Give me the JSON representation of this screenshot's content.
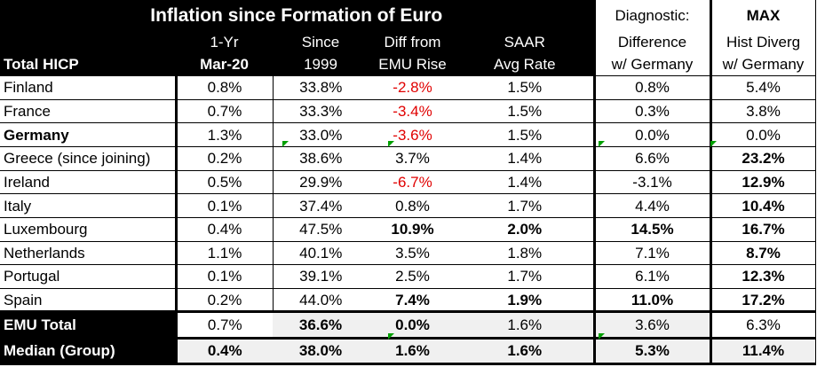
{
  "header": {
    "title": "Inflation since Formation of Euro",
    "row_label": "Total HICP",
    "col1": [
      "1-Yr",
      "Mar-20"
    ],
    "col2": [
      "Since",
      "1999"
    ],
    "col3": [
      "Diff from",
      "EMU Rise"
    ],
    "col4": [
      "SAAR",
      "Avg Rate"
    ],
    "col5": [
      "Diagnostic:",
      "Difference",
      "w/ Germany"
    ],
    "col6": [
      "MAX",
      "Hist Diverg",
      "w/ Germany"
    ]
  },
  "rows": [
    {
      "name": "Finland",
      "yr": "0.8%",
      "since": "33.8%",
      "diff": "-2.8%",
      "saar": "1.5%",
      "diag": "0.8%",
      "max": "5.4%"
    },
    {
      "name": "France",
      "yr": "0.7%",
      "since": "33.3%",
      "diff": "-3.4%",
      "saar": "1.5%",
      "diag": "0.3%",
      "max": "3.8%"
    },
    {
      "name": "Germany",
      "yr": "1.3%",
      "since": "33.0%",
      "diff": "-3.6%",
      "saar": "1.5%",
      "diag": "0.0%",
      "max": "0.0%"
    },
    {
      "name": "Greece (since joining)",
      "yr": "0.2%",
      "since": "38.6%",
      "diff": "3.7%",
      "saar": "1.4%",
      "diag": "6.6%",
      "max": "23.2%"
    },
    {
      "name": "Ireland",
      "yr": "0.5%",
      "since": "29.9%",
      "diff": "-6.7%",
      "saar": "1.4%",
      "diag": "-3.1%",
      "max": "12.9%"
    },
    {
      "name": "Italy",
      "yr": "0.1%",
      "since": "37.4%",
      "diff": "0.8%",
      "saar": "1.7%",
      "diag": "4.4%",
      "max": "10.4%"
    },
    {
      "name": "Luxembourg",
      "yr": "0.4%",
      "since": "47.5%",
      "diff": "10.9%",
      "saar": "2.0%",
      "diag": "14.5%",
      "max": "16.7%"
    },
    {
      "name": "Netherlands",
      "yr": "1.1%",
      "since": "40.1%",
      "diff": "3.5%",
      "saar": "1.8%",
      "diag": "7.1%",
      "max": "8.7%"
    },
    {
      "name": "Portugal",
      "yr": "0.1%",
      "since": "39.1%",
      "diff": "2.5%",
      "saar": "1.7%",
      "diag": "6.1%",
      "max": "12.3%"
    },
    {
      "name": "Spain",
      "yr": "0.2%",
      "since": "44.0%",
      "diff": "7.4%",
      "saar": "1.9%",
      "diag": "11.0%",
      "max": "17.2%"
    }
  ],
  "summary": [
    {
      "name": "EMU Total",
      "yr": "0.7%",
      "since": "36.6%",
      "diff": "0.0%",
      "saar": "1.6%",
      "diag": "3.6%",
      "max": "6.3%"
    },
    {
      "name": "Median (Group)",
      "yr": "0.4%",
      "since": "38.0%",
      "diff": "1.6%",
      "saar": "1.6%",
      "diag": "5.3%",
      "max": "11.4%"
    }
  ],
  "colors": {
    "negative": "#e00000",
    "header_bg": "#000000",
    "marker": "#00a000"
  }
}
